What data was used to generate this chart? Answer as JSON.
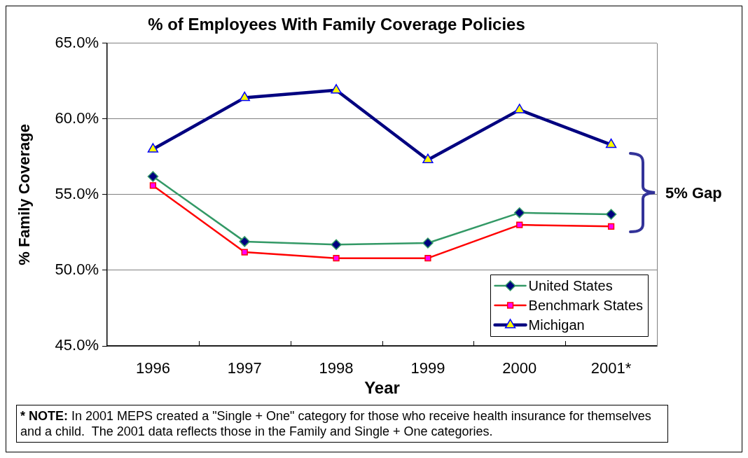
{
  "chart_data": {
    "type": "line",
    "title": "% of Employees With Family Coverage Policies",
    "xlabel": "Year",
    "ylabel": "% Family Coverage",
    "categories": [
      "1996",
      "1997",
      "1998",
      "1999",
      "2000",
      "2001*"
    ],
    "series": [
      {
        "name": "United States",
        "color": "#339966",
        "marker": "diamond",
        "values": [
          56.2,
          51.9,
          51.7,
          51.8,
          53.8,
          53.7
        ]
      },
      {
        "name": "Benchmark States",
        "color": "#ff0000",
        "marker": "square",
        "values": [
          55.6,
          51.2,
          50.8,
          50.8,
          53.0,
          52.9
        ]
      },
      {
        "name": "Michigan",
        "color": "#000080",
        "marker": "triangle",
        "values": [
          58.0,
          61.4,
          61.9,
          57.3,
          60.6,
          58.3
        ]
      }
    ],
    "ylim": [
      45,
      65
    ],
    "yticks": [
      {
        "value": 45,
        "label": "45.0%"
      },
      {
        "value": 50,
        "label": "50.0%"
      },
      {
        "value": 55,
        "label": "55.0%"
      },
      {
        "value": 60,
        "label": "60.0%"
      },
      {
        "value": 65,
        "label": "65.0%"
      }
    ],
    "grid": "y",
    "legend": "bottom right",
    "annotations": [
      "5% Gap",
      "* NOTE: In 2001 MEPS created a \"Single + One\" category for those who receive health insurance for themselves and a child.  The 2001 data reflects those in the Family and Single + One categories."
    ]
  }
}
